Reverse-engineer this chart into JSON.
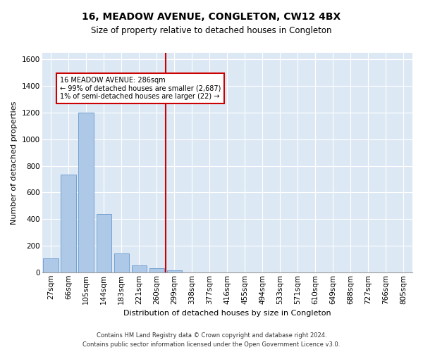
{
  "title": "16, MEADOW AVENUE, CONGLETON, CW12 4BX",
  "subtitle": "Size of property relative to detached houses in Congleton",
  "xlabel": "Distribution of detached houses by size in Congleton",
  "ylabel": "Number of detached properties",
  "footer1": "Contains HM Land Registry data © Crown copyright and database right 2024.",
  "footer2": "Contains public sector information licensed under the Open Government Licence v3.0.",
  "categories": [
    "27sqm",
    "66sqm",
    "105sqm",
    "144sqm",
    "183sqm",
    "221sqm",
    "260sqm",
    "299sqm",
    "338sqm",
    "377sqm",
    "416sqm",
    "455sqm",
    "494sqm",
    "533sqm",
    "571sqm",
    "610sqm",
    "649sqm",
    "688sqm",
    "727sqm",
    "766sqm",
    "805sqm"
  ],
  "values": [
    107,
    735,
    1200,
    440,
    140,
    50,
    32,
    12,
    0,
    0,
    0,
    0,
    0,
    0,
    0,
    0,
    0,
    0,
    0,
    0,
    0
  ],
  "bar_color": "#aec8e8",
  "bar_edge_color": "#6699cc",
  "bg_color": "#dde8f5",
  "grid_color": "#ffffff",
  "vline_x_idx": 7,
  "vline_color": "#cc0000",
  "annotation_line1": "16 MEADOW AVENUE: 286sqm",
  "annotation_line2": "← 99% of detached houses are smaller (2,687)",
  "annotation_line3": "1% of semi-detached houses are larger (22) →",
  "annotation_box_color": "#cc0000",
  "ylim": [
    0,
    1650
  ],
  "yticks": [
    0,
    200,
    400,
    600,
    800,
    1000,
    1200,
    1400,
    1600
  ],
  "title_fontsize": 10,
  "subtitle_fontsize": 8.5,
  "axis_label_fontsize": 8,
  "tick_fontsize": 7.5,
  "footer_fontsize": 6
}
